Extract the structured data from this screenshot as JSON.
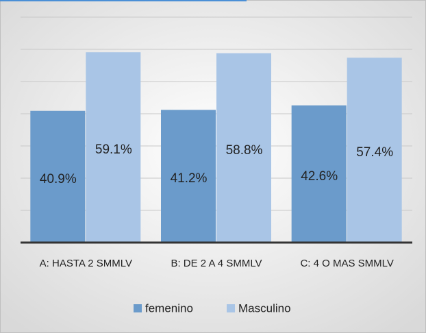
{
  "chart_data": {
    "type": "bar",
    "categories": [
      "A: HASTA 2 SMMLV",
      "B: DE 2 A 4 SMMLV",
      "C: 4 O MAS SMMLV"
    ],
    "series": [
      {
        "name": "femenino",
        "color": "#6b9bcb",
        "values": [
          40.9,
          41.2,
          42.6
        ],
        "value_labels": [
          "40.9%",
          "41.2%",
          "42.6%"
        ]
      },
      {
        "name": "Masculino",
        "color": "#a9c5e6",
        "values": [
          59.1,
          58.8,
          57.4
        ],
        "value_labels": [
          "59.1%",
          "58.8%",
          "57.4%"
        ]
      }
    ],
    "ylim": [
      0,
      70
    ],
    "yticks": [
      0,
      10,
      20,
      30,
      40,
      50,
      60,
      70
    ],
    "grid": true,
    "legend": "bottom"
  }
}
